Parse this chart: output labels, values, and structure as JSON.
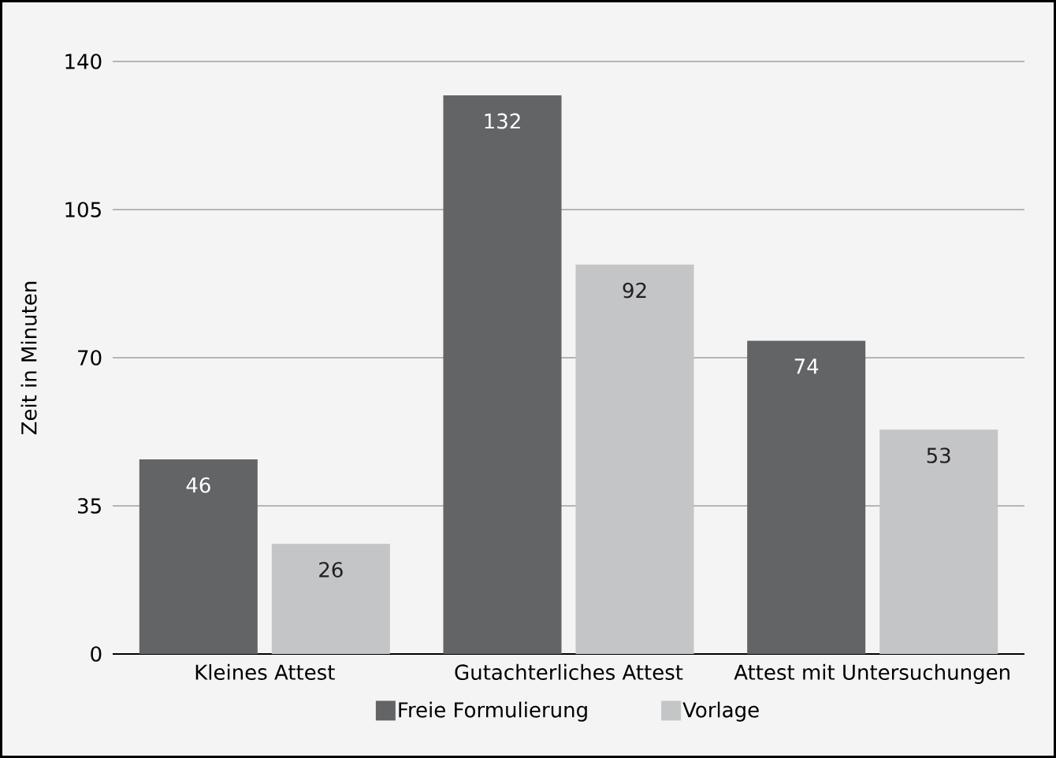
{
  "chart_data": {
    "type": "bar",
    "ylabel": "Zeit in Minuten",
    "categories": [
      "Kleines Attest",
      "Gutachterliches Attest",
      "Attest mit Untersuchungen"
    ],
    "series": [
      {
        "name": "Freie Formulierung",
        "color": "#636466",
        "values": [
          46,
          132,
          74
        ]
      },
      {
        "name": "Vorlage",
        "color": "#c4c5c7",
        "values": [
          26,
          92,
          53
        ]
      }
    ],
    "ylim": [
      0,
      140
    ],
    "yticks": [
      0,
      35,
      70,
      105,
      140
    ],
    "grid": "y",
    "legend": "bottom",
    "data_labels": true
  }
}
